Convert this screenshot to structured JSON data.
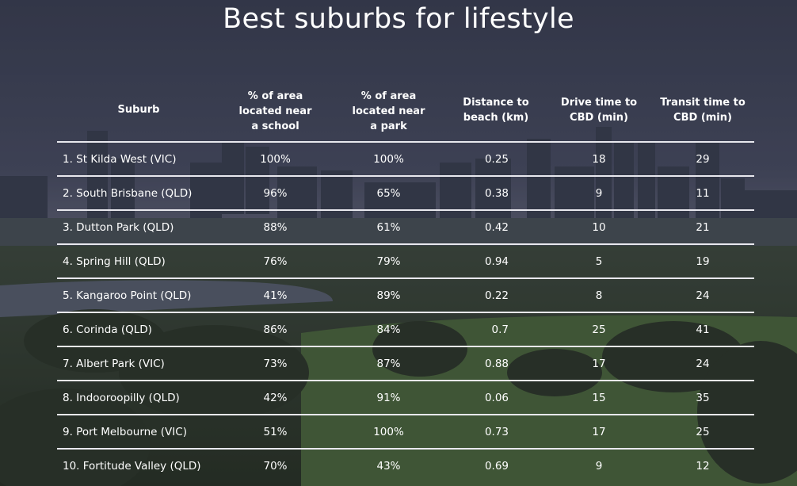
{
  "title": "Best suburbs for lifestyle",
  "headers": {
    "suburb": "Suburb",
    "school": "% of area\nlocated near\na school",
    "park": "% of area\nlocated near\na park",
    "beach": "Distance to\nbeach (km)",
    "drive": "Drive time to\nCBD (min)",
    "transit": "Transit time to\nCBD (min)"
  },
  "rows": [
    {
      "suburb": "1. St Kilda West (VIC)",
      "school": "100%",
      "park": "100%",
      "beach": "0.25",
      "drive": "18",
      "transit": "29"
    },
    {
      "suburb": "2. South Brisbane (QLD)",
      "school": "96%",
      "park": "65%",
      "beach": "0.38",
      "drive": "9",
      "transit": "11"
    },
    {
      "suburb": "3. Dutton Park (QLD)",
      "school": "88%",
      "park": "61%",
      "beach": "0.42",
      "drive": "10",
      "transit": "21"
    },
    {
      "suburb": "4. Spring Hill (QLD)",
      "school": "76%",
      "park": "79%",
      "beach": "0.94",
      "drive": "5",
      "transit": "19"
    },
    {
      "suburb": "5. Kangaroo Point (QLD)",
      "school": "41%",
      "park": "89%",
      "beach": "0.22",
      "drive": "8",
      "transit": "24"
    },
    {
      "suburb": "6. Corinda (QLD)",
      "school": "86%",
      "park": "84%",
      "beach": "0.7",
      "drive": "25",
      "transit": "41"
    },
    {
      "suburb": "7. Albert Park (VIC)",
      "school": "73%",
      "park": "87%",
      "beach": "0.88",
      "drive": "17",
      "transit": "24"
    },
    {
      "suburb": "8. Indooroopilly (QLD)",
      "school": "42%",
      "park": "91%",
      "beach": "0.06",
      "drive": "15",
      "transit": "35"
    },
    {
      "suburb": "9. Port Melbourne (VIC)",
      "school": "51%",
      "park": "100%",
      "beach": "0.73",
      "drive": "17",
      "transit": "25"
    },
    {
      "suburb": "10. Fortitude Valley (QLD)",
      "school": "70%",
      "park": "43%",
      "beach": "0.69",
      "drive": "9",
      "transit": "12"
    }
  ]
}
